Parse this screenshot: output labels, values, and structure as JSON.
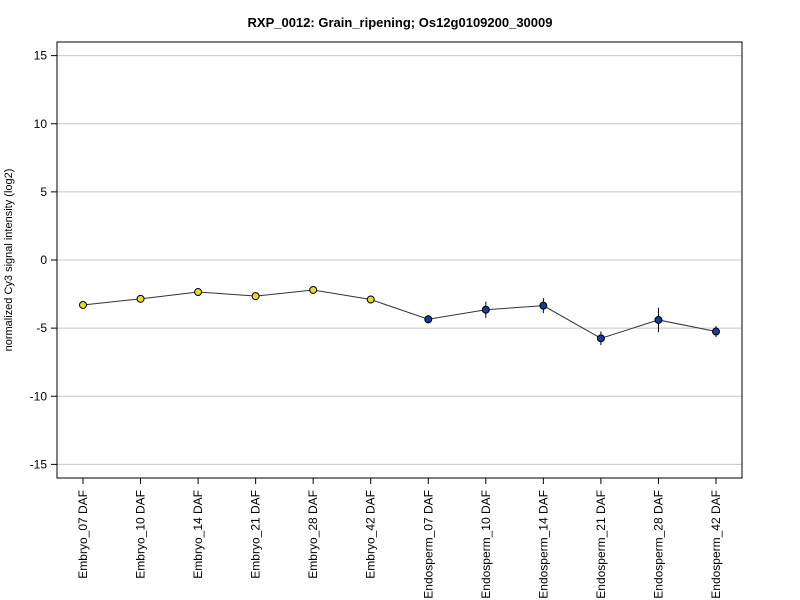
{
  "chart_data": {
    "type": "line",
    "title": "RXP_0012: Grain_ripening; Os12g0109200_30009",
    "xlabel": "",
    "ylabel": "normalized Cy3 signal intensity (log2)",
    "ylim": [
      -16,
      16
    ],
    "yticks": [
      -15,
      -10,
      -5,
      0,
      5,
      10,
      15
    ],
    "grid": true,
    "categories": [
      "Embryo_07 DAF",
      "Embryo_10 DAF",
      "Embryo_14 DAF",
      "Embryo_21 DAF",
      "Embryo_28 DAF",
      "Embryo_42 DAF",
      "Endosperm_07 DAF",
      "Endosperm_10 DAF",
      "Endosperm_14 DAF",
      "Endosperm_21 DAF",
      "Endosperm_28 DAF",
      "Endosperm_42 DAF"
    ],
    "values": [
      -3.3,
      -2.85,
      -2.35,
      -2.65,
      -2.2,
      -2.9,
      -4.35,
      -3.65,
      -3.35,
      -5.75,
      -4.4,
      -5.25
    ],
    "errors": [
      0.1,
      0.1,
      0.1,
      0.1,
      0.1,
      0.15,
      0.3,
      0.6,
      0.55,
      0.5,
      0.9,
      0.4
    ],
    "point_colors": [
      "#e8d82a",
      "#e8d82a",
      "#e8d82a",
      "#e8d82a",
      "#e8d82a",
      "#e8d82a",
      "#1a3a9c",
      "#1a3a9c",
      "#1a3a9c",
      "#1a3a9c",
      "#1a3a9c",
      "#1a3a9c"
    ]
  }
}
